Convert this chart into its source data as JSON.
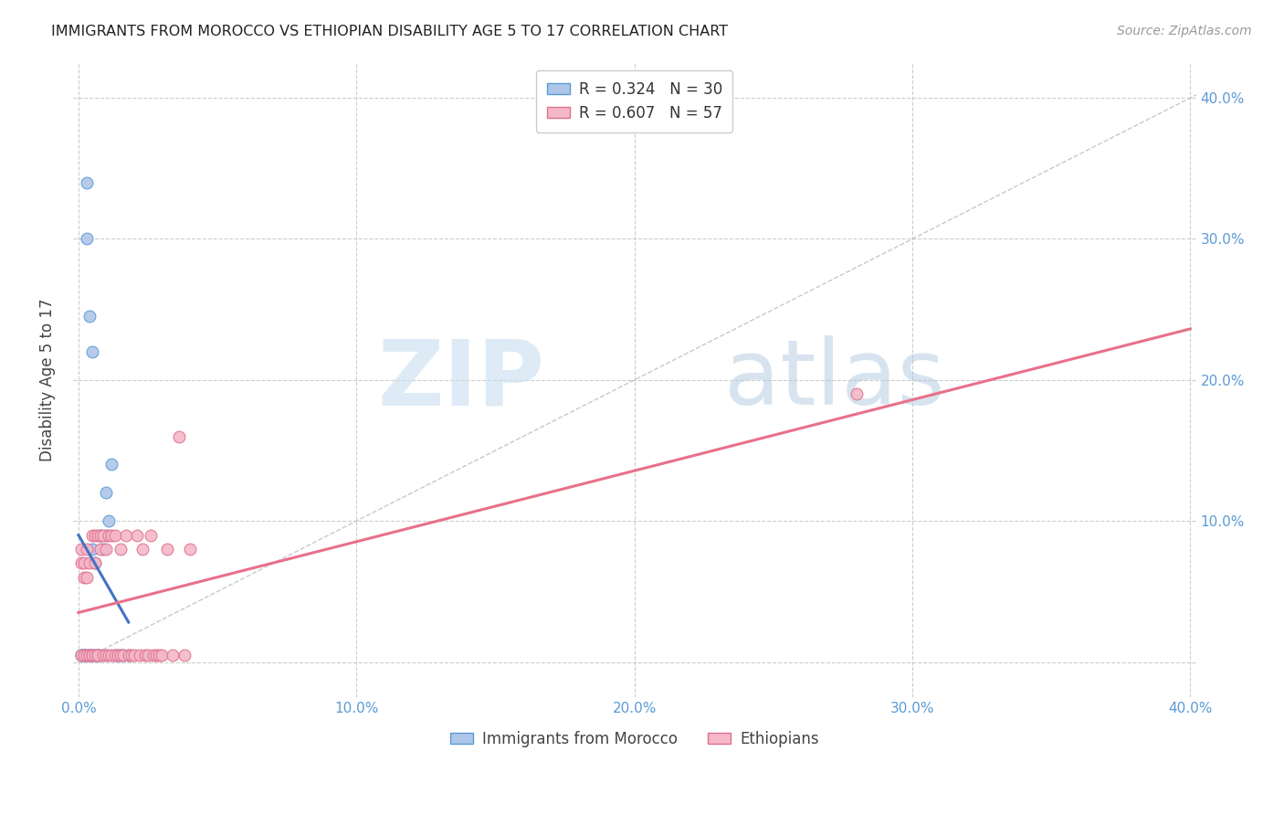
{
  "title": "IMMIGRANTS FROM MOROCCO VS ETHIOPIAN DISABILITY AGE 5 TO 17 CORRELATION CHART",
  "source": "Source: ZipAtlas.com",
  "ylabel": "Disability Age 5 to 17",
  "xlim": [
    -0.002,
    0.402
  ],
  "ylim": [
    -0.025,
    0.425
  ],
  "xticks": [
    0.0,
    0.1,
    0.2,
    0.3,
    0.4
  ],
  "yticks": [
    0.0,
    0.1,
    0.2,
    0.3,
    0.4
  ],
  "xticklabels": [
    "0.0%",
    "10.0%",
    "20.0%",
    "30.0%",
    "40.0%"
  ],
  "yticklabels_right": [
    "",
    "10.0%",
    "20.0%",
    "30.0%",
    "40.0%"
  ],
  "morocco_color": "#aec6e8",
  "morocco_edge_color": "#5b9bd5",
  "ethiopia_color": "#f4b8c8",
  "ethiopia_edge_color": "#e07090",
  "trendline_morocco_color": "#4472c4",
  "trendline_ethiopia_color": "#e8708a",
  "diagonal_color": "#bbbbbb",
  "R_morocco": 0.324,
  "N_morocco": 30,
  "R_ethiopia": 0.607,
  "N_ethiopia": 57,
  "legend_label_morocco": "Immigrants from Morocco",
  "legend_label_ethiopia": "Ethiopians",
  "background_color": "#ffffff",
  "grid_color": "#cccccc",
  "tick_color": "#5b9bd5",
  "title_color": "#222222",
  "source_color": "#999999",
  "ylabel_color": "#444444",
  "morocco_x": [
    0.001,
    0.001,
    0.002,
    0.002,
    0.002,
    0.003,
    0.003,
    0.004,
    0.004,
    0.005,
    0.005,
    0.006,
    0.006,
    0.007,
    0.007,
    0.008,
    0.008,
    0.009,
    0.01,
    0.01,
    0.011,
    0.012,
    0.013,
    0.014,
    0.015,
    0.016,
    0.018,
    0.003,
    0.004,
    0.005
  ],
  "morocco_y": [
    0.005,
    0.005,
    0.005,
    0.005,
    0.005,
    0.005,
    0.34,
    0.005,
    0.005,
    0.005,
    0.08,
    0.005,
    0.07,
    0.005,
    0.005,
    0.09,
    0.005,
    0.08,
    0.12,
    0.09,
    0.1,
    0.14,
    0.005,
    0.005,
    0.005,
    0.005,
    0.005,
    0.3,
    0.245,
    0.22
  ],
  "ethiopia_x": [
    0.001,
    0.001,
    0.001,
    0.002,
    0.002,
    0.002,
    0.003,
    0.003,
    0.003,
    0.004,
    0.004,
    0.004,
    0.005,
    0.005,
    0.005,
    0.006,
    0.006,
    0.006,
    0.007,
    0.007,
    0.007,
    0.008,
    0.008,
    0.009,
    0.009,
    0.01,
    0.01,
    0.011,
    0.011,
    0.012,
    0.012,
    0.013,
    0.013,
    0.014,
    0.015,
    0.015,
    0.016,
    0.017,
    0.018,
    0.019,
    0.02,
    0.021,
    0.022,
    0.023,
    0.024,
    0.025,
    0.026,
    0.027,
    0.028,
    0.029,
    0.03,
    0.032,
    0.034,
    0.036,
    0.038,
    0.04,
    0.28
  ],
  "ethiopia_y": [
    0.005,
    0.07,
    0.08,
    0.005,
    0.07,
    0.06,
    0.005,
    0.06,
    0.08,
    0.005,
    0.005,
    0.07,
    0.005,
    0.005,
    0.09,
    0.005,
    0.07,
    0.09,
    0.005,
    0.09,
    0.005,
    0.08,
    0.09,
    0.005,
    0.09,
    0.005,
    0.08,
    0.09,
    0.005,
    0.005,
    0.09,
    0.005,
    0.09,
    0.005,
    0.005,
    0.08,
    0.005,
    0.09,
    0.005,
    0.005,
    0.005,
    0.09,
    0.005,
    0.08,
    0.005,
    0.005,
    0.09,
    0.005,
    0.005,
    0.005,
    0.005,
    0.08,
    0.005,
    0.16,
    0.005,
    0.08,
    0.19
  ]
}
